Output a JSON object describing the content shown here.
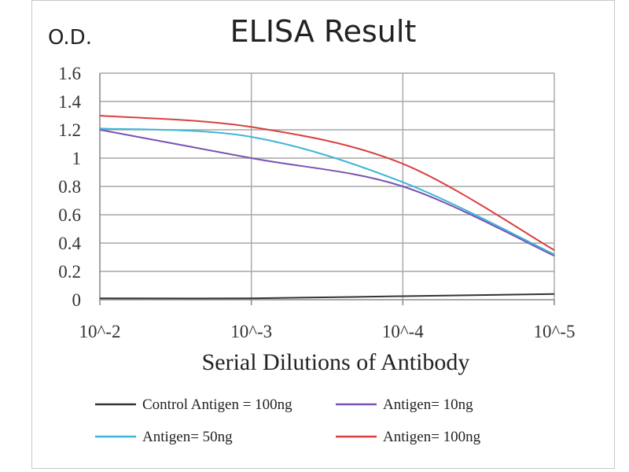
{
  "chart_data": {
    "type": "line",
    "title": "ELISA Result",
    "ylabel": "O.D.",
    "xlabel": "Serial Dilutions  of Antibody",
    "categories": [
      "10^-2",
      "10^-3",
      "10^-4",
      "10^-5"
    ],
    "x": [
      -2,
      -3,
      -4,
      -5
    ],
    "xlim": [
      -2,
      -5
    ],
    "ylim": [
      0,
      1.6
    ],
    "yticks": [
      "0",
      "0.2",
      "0.4",
      "0.6",
      "0.8",
      "1",
      "1.2",
      "1.4",
      "1.6"
    ],
    "yticks_values": [
      0,
      0.2,
      0.4,
      0.6,
      0.8,
      1.0,
      1.2,
      1.4,
      1.6
    ],
    "grid": true,
    "legend": "bottom",
    "series": [
      {
        "name": "Control Antigen = 100ng",
        "color": "#333333",
        "values": [
          0.01,
          0.01,
          0.025,
          0.04
        ]
      },
      {
        "name": "Antigen= 10ng",
        "color": "#7a52b3",
        "values": [
          1.2,
          1.0,
          0.8,
          0.31
        ]
      },
      {
        "name": "Antigen= 50ng",
        "color": "#3fb6d6",
        "values": [
          1.21,
          1.15,
          0.83,
          0.32
        ]
      },
      {
        "name": "Antigen= 100ng",
        "color": "#d94040",
        "values": [
          1.3,
          1.22,
          0.96,
          0.35
        ]
      }
    ]
  }
}
